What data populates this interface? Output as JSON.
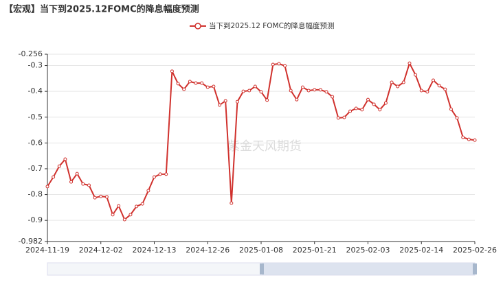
{
  "chart_data": {
    "type": "line",
    "title": "【宏观】当下到2025.12FOMC的降息幅度预测",
    "watermark": "紫金天风期货",
    "categories": [
      "2024-11-19",
      null,
      null,
      null,
      null,
      null,
      null,
      null,
      null,
      "2024-12-02",
      null,
      null,
      null,
      null,
      null,
      null,
      null,
      null,
      "2024-12-13",
      null,
      null,
      null,
      null,
      null,
      null,
      null,
      null,
      "2024-12-26",
      null,
      null,
      null,
      null,
      null,
      null,
      null,
      null,
      "2025-01-08",
      null,
      null,
      null,
      null,
      null,
      null,
      null,
      null,
      "2025-01-21",
      null,
      null,
      null,
      null,
      null,
      null,
      null,
      null,
      "2025-02-03",
      null,
      null,
      null,
      null,
      null,
      null,
      null,
      null,
      "2025-02-14",
      null,
      null,
      null,
      null,
      null,
      null,
      null,
      null,
      "2025-02-26"
    ],
    "series": [
      {
        "name": "当下到2025.12 FOMC的降息幅度预测",
        "color": "#d0312d",
        "values": [
          -0.769,
          -0.732,
          -0.69,
          -0.663,
          -0.751,
          -0.719,
          -0.759,
          -0.764,
          -0.812,
          -0.807,
          -0.809,
          -0.878,
          -0.844,
          -0.897,
          -0.878,
          -0.846,
          -0.836,
          -0.785,
          -0.732,
          -0.721,
          -0.721,
          -0.322,
          -0.37,
          -0.392,
          -0.362,
          -0.368,
          -0.368,
          -0.384,
          -0.381,
          -0.453,
          -0.437,
          -0.833,
          -0.44,
          -0.4,
          -0.397,
          -0.381,
          -0.402,
          -0.434,
          -0.296,
          -0.293,
          -0.301,
          -0.397,
          -0.432,
          -0.384,
          -0.397,
          -0.394,
          -0.394,
          -0.402,
          -0.421,
          -0.503,
          -0.501,
          -0.477,
          -0.466,
          -0.471,
          -0.432,
          -0.45,
          -0.471,
          -0.445,
          -0.365,
          -0.381,
          -0.365,
          -0.291,
          -0.336,
          -0.397,
          -0.402,
          -0.357,
          -0.378,
          -0.392,
          -0.469,
          -0.503,
          -0.578,
          -0.586,
          -0.589
        ]
      }
    ],
    "ylim": [
      -0.982,
      -0.256
    ],
    "yticks": [
      -0.982,
      -0.9,
      -0.8,
      -0.7,
      -0.6,
      -0.5,
      -0.4,
      -0.3,
      -0.256
    ],
    "grid": true
  }
}
